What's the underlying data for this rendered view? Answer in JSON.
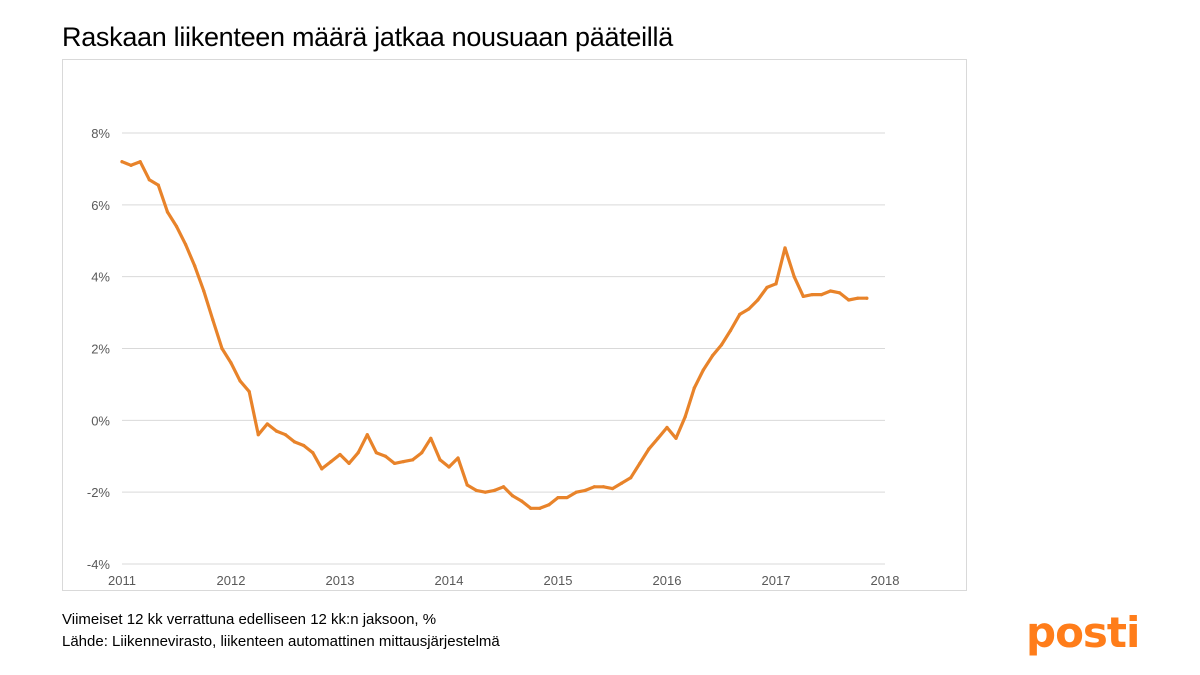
{
  "title": "Raskaan liikenteen määrä jatkaa nousuaan pääteillä",
  "footer": {
    "note": "Viimeiset 12 kk verrattuna edelliseen 12 kk:n jaksoon, %",
    "source": "Lähde: Liikennevirasto, liikenteen automattinen mittausjärjestelmä"
  },
  "logo": {
    "text": "posti",
    "color": "#ff7d1a"
  },
  "colors": {
    "line": "#e8832a",
    "grid": "#d9d9d9",
    "tick_text": "#595959"
  },
  "chart_data": {
    "type": "line",
    "title": "",
    "xlabel": "",
    "ylabel": "",
    "x_ticks": [
      "2011",
      "2012",
      "2013",
      "2014",
      "2015",
      "2016",
      "2017",
      "2018"
    ],
    "y_ticks": [
      "-4%",
      "-2%",
      "0%",
      "2%",
      "4%",
      "6%",
      "8%"
    ],
    "xlim": [
      2011,
      2018
    ],
    "ylim": [
      -4,
      8
    ],
    "grid": "horizontal",
    "series": [
      {
        "x": [
          2011.0,
          2011.083,
          2011.167,
          2011.25,
          2011.333,
          2011.417,
          2011.5,
          2011.583,
          2011.667,
          2011.75,
          2011.833,
          2011.917,
          2012.0,
          2012.083,
          2012.167,
          2012.25,
          2012.333,
          2012.417,
          2012.5,
          2012.583,
          2012.667,
          2012.75,
          2012.833,
          2012.917,
          2013.0,
          2013.083,
          2013.167,
          2013.25,
          2013.333,
          2013.417,
          2013.5,
          2013.583,
          2013.667,
          2013.75,
          2013.833,
          2013.917,
          2014.0,
          2014.083,
          2014.167,
          2014.25,
          2014.333,
          2014.417,
          2014.5,
          2014.583,
          2014.667,
          2014.75,
          2014.833,
          2014.917,
          2015.0,
          2015.083,
          2015.167,
          2015.25,
          2015.333,
          2015.417,
          2015.5,
          2015.583,
          2015.667,
          2015.75,
          2015.833,
          2015.917,
          2016.0,
          2016.083,
          2016.167,
          2016.25,
          2016.333,
          2016.417,
          2016.5,
          2016.583,
          2016.667,
          2016.75,
          2016.833,
          2016.917,
          2017.0,
          2017.083,
          2017.167,
          2017.25,
          2017.333,
          2017.417,
          2017.5,
          2017.583,
          2017.667,
          2017.75,
          2017.833
        ],
        "values": [
          7.2,
          7.1,
          7.2,
          6.7,
          6.55,
          5.8,
          5.4,
          4.9,
          4.3,
          3.6,
          2.8,
          2.0,
          1.6,
          1.1,
          0.8,
          -0.4,
          -0.1,
          -0.3,
          -0.4,
          -0.6,
          -0.7,
          -0.9,
          -1.35,
          -1.15,
          -0.95,
          -1.2,
          -0.9,
          -0.4,
          -0.9,
          -1.0,
          -1.2,
          -1.15,
          -1.1,
          -0.9,
          -0.5,
          -1.1,
          -1.3,
          -1.05,
          -1.8,
          -1.95,
          -2.0,
          -1.95,
          -1.85,
          -2.1,
          -2.25,
          -2.45,
          -2.45,
          -2.35,
          -2.15,
          -2.15,
          -2.0,
          -1.95,
          -1.85,
          -1.85,
          -1.9,
          -1.75,
          -1.6,
          -1.2,
          -0.8,
          -0.5,
          -0.2,
          -0.5,
          0.1,
          0.9,
          1.4,
          1.8,
          2.1,
          2.5,
          2.95,
          3.1,
          3.35,
          3.7,
          3.8,
          4.8,
          4.0,
          3.45,
          3.5,
          3.5,
          3.6,
          3.55,
          3.35,
          3.4,
          3.4
        ]
      }
    ]
  }
}
